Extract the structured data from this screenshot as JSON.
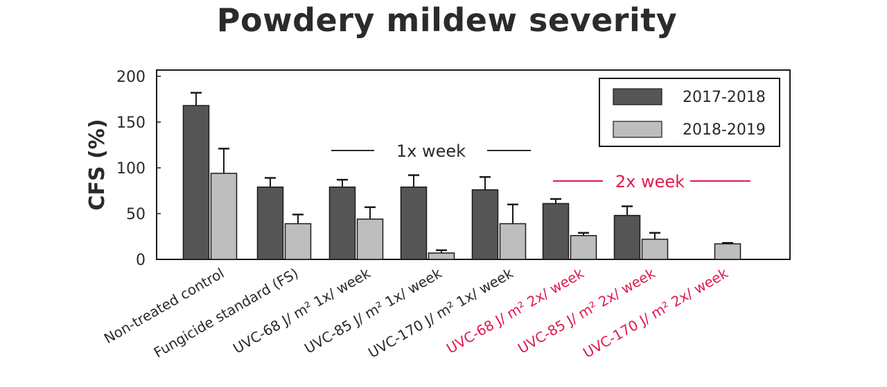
{
  "chart_data": {
    "type": "bar",
    "title": "Powdery mildew severity",
    "ylabel": "CFS (%)",
    "xlabel": "",
    "ylim": [
      0,
      200
    ],
    "yticks": [
      0,
      50,
      100,
      150,
      200
    ],
    "grid": false,
    "legend_position": "top-right",
    "categories": [
      "Non-treated control",
      "Fungicide standard (FS)",
      "UVC-68  J/ m² 1x/ week",
      "UVC-85  J/ m² 1x/ week",
      "UVC-170  J/ m² 1x/ week",
      "UVC-68  J/ m² 2x/ week",
      "UVC-85  J/ m² 2x/ week",
      "UVC-170  J/ m² 2x/ week"
    ],
    "category_colors": [
      "#2a2a2a",
      "#2a2a2a",
      "#2a2a2a",
      "#2a2a2a",
      "#2a2a2a",
      "#e0194f",
      "#e0194f",
      "#e0194f"
    ],
    "series": [
      {
        "name": "2017-2018",
        "color": "#555555",
        "values": [
          168,
          79,
          79,
          79,
          76,
          61,
          48,
          null
        ],
        "errors": [
          14,
          10,
          8,
          13,
          14,
          5,
          10,
          null
        ]
      },
      {
        "name": "2018-2019",
        "color": "#bebebe",
        "values": [
          94,
          39,
          44,
          7,
          39,
          26,
          22,
          17
        ],
        "errors": [
          27,
          10,
          13,
          3,
          21,
          3,
          7,
          1
        ]
      }
    ],
    "group_annotations": [
      {
        "text": "1x week",
        "color": "#2a2a2a"
      },
      {
        "text": "2x week",
        "color": "#e0194f"
      }
    ]
  }
}
